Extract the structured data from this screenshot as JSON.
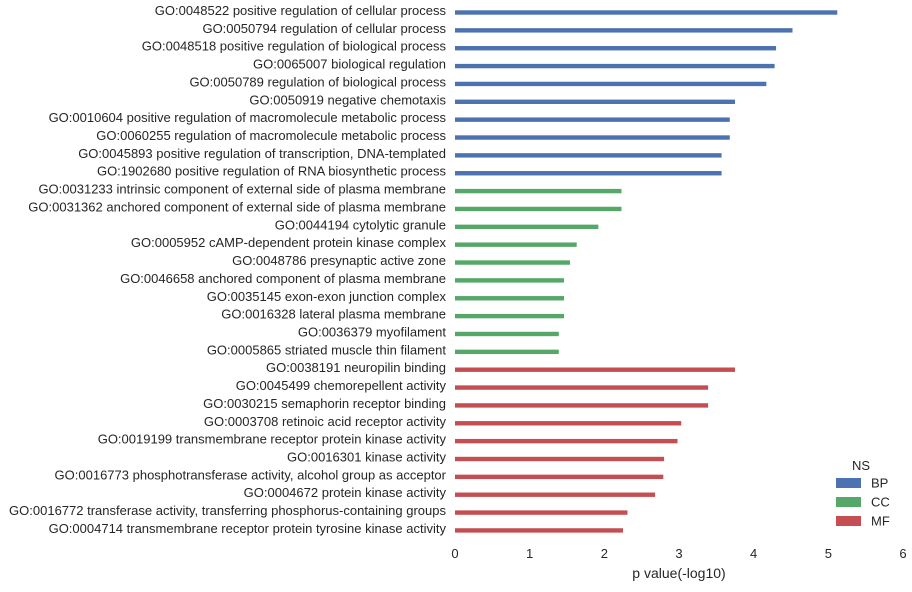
{
  "chart_data": {
    "type": "bar",
    "orientation": "horizontal",
    "title": "",
    "xlabel": "p value(-log10)",
    "ylabel": "",
    "xlim": [
      0,
      6
    ],
    "xticks": [
      "0",
      "1",
      "2",
      "3",
      "4",
      "5",
      "6"
    ],
    "grid": false,
    "legend": {
      "title": "NS",
      "placement": "bottom-right",
      "entries": [
        {
          "name": "BP",
          "color": "#4c72b0"
        },
        {
          "name": "CC",
          "color": "#55a868"
        },
        {
          "name": "MF",
          "color": "#c44e52"
        }
      ]
    },
    "categories": [
      {
        "label": "GO:0048522 positive regulation of cellular process",
        "value": 5.12,
        "ns": "BP"
      },
      {
        "label": "GO:0050794 regulation of cellular process",
        "value": 4.52,
        "ns": "BP"
      },
      {
        "label": "GO:0048518 positive regulation of biological process",
        "value": 4.3,
        "ns": "BP"
      },
      {
        "label": "GO:0065007 biological regulation",
        "value": 4.28,
        "ns": "BP"
      },
      {
        "label": "GO:0050789 regulation of biological process",
        "value": 4.17,
        "ns": "BP"
      },
      {
        "label": "GO:0050919 negative chemotaxis",
        "value": 3.75,
        "ns": "BP"
      },
      {
        "label": "GO:0010604 positive regulation of macromolecule metabolic process",
        "value": 3.68,
        "ns": "BP"
      },
      {
        "label": "GO:0060255 regulation of macromolecule metabolic process",
        "value": 3.68,
        "ns": "BP"
      },
      {
        "label": "GO:0045893 positive regulation of transcription, DNA-templated",
        "value": 3.57,
        "ns": "BP"
      },
      {
        "label": "GO:1902680 positive regulation of RNA biosynthetic process",
        "value": 3.57,
        "ns": "BP"
      },
      {
        "label": "GO:0031233 intrinsic component of external side of plasma membrane",
        "value": 2.23,
        "ns": "CC"
      },
      {
        "label": "GO:0031362 anchored component of external side of plasma membrane",
        "value": 2.23,
        "ns": "CC"
      },
      {
        "label": "GO:0044194 cytolytic granule",
        "value": 1.92,
        "ns": "CC"
      },
      {
        "label": "GO:0005952 cAMP-dependent protein kinase complex",
        "value": 1.63,
        "ns": "CC"
      },
      {
        "label": "GO:0048786 presynaptic active zone",
        "value": 1.54,
        "ns": "CC"
      },
      {
        "label": "GO:0046658 anchored component of plasma membrane",
        "value": 1.46,
        "ns": "CC"
      },
      {
        "label": "GO:0035145 exon-exon junction complex",
        "value": 1.46,
        "ns": "CC"
      },
      {
        "label": "GO:0016328 lateral plasma membrane",
        "value": 1.46,
        "ns": "CC"
      },
      {
        "label": "GO:0036379 myofilament",
        "value": 1.39,
        "ns": "CC"
      },
      {
        "label": "GO:0005865 striated muscle thin filament",
        "value": 1.39,
        "ns": "CC"
      },
      {
        "label": "GO:0038191 neuropilin binding",
        "value": 3.75,
        "ns": "MF"
      },
      {
        "label": "GO:0045499 chemorepellent activity",
        "value": 3.39,
        "ns": "MF"
      },
      {
        "label": "GO:0030215 semaphorin receptor binding",
        "value": 3.39,
        "ns": "MF"
      },
      {
        "label": "GO:0003708 retinoic acid receptor activity",
        "value": 3.03,
        "ns": "MF"
      },
      {
        "label": "GO:0019199 transmembrane receptor protein kinase activity",
        "value": 2.98,
        "ns": "MF"
      },
      {
        "label": "GO:0016301 kinase activity",
        "value": 2.8,
        "ns": "MF"
      },
      {
        "label": "GO:0016773 phosphotransferase activity, alcohol group as acceptor",
        "value": 2.79,
        "ns": "MF"
      },
      {
        "label": "GO:0004672 protein kinase activity",
        "value": 2.68,
        "ns": "MF"
      },
      {
        "label": "GO:0016772 transferase activity, transferring phosphorus-containing groups",
        "value": 2.31,
        "ns": "MF"
      },
      {
        "label": "GO:0004714 transmembrane receptor protein tyrosine kinase activity",
        "value": 2.25,
        "ns": "MF"
      }
    ]
  }
}
